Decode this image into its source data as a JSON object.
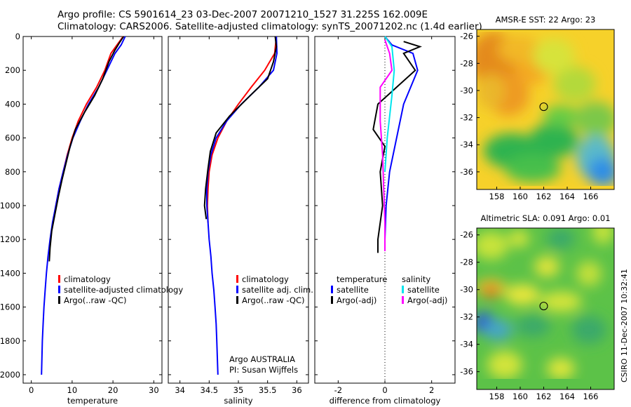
{
  "header": {
    "line1": "Argo profile: CS 5901614_23 03-Dec-2007 20071210_1527 31.225S 162.009E",
    "line2": "Climatology: CARS2006. Satellite-adjusted climatology: synTS_20071202.nc (1.4d earlier)"
  },
  "colors": {
    "climatology": "#ff0000",
    "satellite": "#0000ff",
    "argo": "#000000",
    "sat_salinity": "#00e5ee",
    "argo_adj_salinity": "#ff00ff"
  },
  "credit": "CSIRO 11-Dec-2007 10:32:41",
  "argo_note": {
    "line1": "Argo AUSTRALIA",
    "line2": "PI: Susan Wijffels"
  },
  "legend_temp": [
    "climatology",
    "satellite-adjusted climatology",
    "Argo(..raw -QC)"
  ],
  "legend_sal": [
    "climatology",
    "satellite adj. clim.",
    "Argo(..raw -QC)"
  ],
  "legend_diff": {
    "col1_title": "temperature",
    "col2_title": "salinity",
    "satellite": "satellite",
    "argo": "Argo(-adj)"
  },
  "chart_data": [
    {
      "type": "line",
      "id": "temperature",
      "xlabel": "temperature",
      "ylabel": "",
      "xlim": [
        -2,
        32
      ],
      "ylim": [
        2050,
        0
      ],
      "xticks": [
        0,
        10,
        20,
        30
      ],
      "yticks": [
        0,
        200,
        400,
        600,
        800,
        1000,
        1200,
        1400,
        1600,
        1800,
        2000
      ],
      "series": [
        {
          "name": "climatology",
          "color": "#ff0000",
          "points": [
            [
              22.5,
              0
            ],
            [
              21,
              50
            ],
            [
              19.5,
              100
            ],
            [
              18,
              200
            ],
            [
              16,
              300
            ],
            [
              13.5,
              400
            ],
            [
              11.5,
              500
            ],
            [
              10,
              600
            ],
            [
              8.8,
              700
            ],
            [
              7.8,
              800
            ],
            [
              6.8,
              900
            ],
            [
              6.0,
              1000
            ],
            [
              5.3,
              1100
            ]
          ]
        },
        {
          "name": "satellite-adjusted climatology",
          "color": "#0000ff",
          "points": [
            [
              23,
              0
            ],
            [
              22,
              50
            ],
            [
              20.5,
              100
            ],
            [
              18.5,
              200
            ],
            [
              16.5,
              300
            ],
            [
              14,
              400
            ],
            [
              12,
              500
            ],
            [
              10.2,
              600
            ],
            [
              8.9,
              700
            ],
            [
              7.8,
              800
            ],
            [
              6.8,
              900
            ],
            [
              6.0,
              1000
            ],
            [
              5.2,
              1100
            ],
            [
              4.6,
              1200
            ],
            [
              4.1,
              1300
            ],
            [
              3.7,
              1400
            ],
            [
              3.4,
              1500
            ],
            [
              3.1,
              1600
            ],
            [
              2.9,
              1700
            ],
            [
              2.7,
              1800
            ],
            [
              2.6,
              1900
            ],
            [
              2.5,
              2000
            ]
          ]
        },
        {
          "name": "Argo(..raw -QC)",
          "color": "#000000",
          "points": [
            [
              22.6,
              0
            ],
            [
              21.5,
              40
            ],
            [
              20.5,
              80
            ],
            [
              19,
              150
            ],
            [
              17.5,
              250
            ],
            [
              15.5,
              350
            ],
            [
              13,
              450
            ],
            [
              10.8,
              550
            ],
            [
              9.5,
              650
            ],
            [
              8.5,
              750
            ],
            [
              7.5,
              850
            ],
            [
              6.6,
              950
            ],
            [
              5.8,
              1050
            ],
            [
              5.0,
              1150
            ],
            [
              4.6,
              1250
            ],
            [
              4.4,
              1330
            ]
          ]
        }
      ]
    },
    {
      "type": "line",
      "id": "salinity",
      "xlabel": "salinity",
      "ylabel": "",
      "xlim": [
        33.8,
        36.2
      ],
      "ylim": [
        2050,
        0
      ],
      "xticks": [
        34,
        34.5,
        35,
        35.5,
        36
      ],
      "yticks": [
        0,
        200,
        400,
        600,
        800,
        1000,
        1200,
        1400,
        1600,
        1800,
        2000
      ],
      "series": [
        {
          "name": "climatology",
          "color": "#ff0000",
          "points": [
            [
              35.65,
              0
            ],
            [
              35.62,
              100
            ],
            [
              35.45,
              200
            ],
            [
              35.22,
              300
            ],
            [
              35.0,
              400
            ],
            [
              34.8,
              500
            ],
            [
              34.65,
              600
            ],
            [
              34.55,
              700
            ],
            [
              34.5,
              800
            ],
            [
              34.48,
              900
            ],
            [
              34.47,
              1000
            ],
            [
              34.48,
              1100
            ]
          ]
        },
        {
          "name": "satellite adj. clim.",
          "color": "#0000ff",
          "points": [
            [
              35.65,
              0
            ],
            [
              35.66,
              100
            ],
            [
              35.6,
              200
            ],
            [
              35.35,
              300
            ],
            [
              35.05,
              400
            ],
            [
              34.8,
              500
            ],
            [
              34.62,
              600
            ],
            [
              34.53,
              700
            ],
            [
              34.48,
              800
            ],
            [
              34.46,
              900
            ],
            [
              34.46,
              1000
            ],
            [
              34.48,
              1100
            ],
            [
              34.5,
              1200
            ],
            [
              34.53,
              1300
            ],
            [
              34.55,
              1400
            ],
            [
              34.58,
              1500
            ],
            [
              34.6,
              1600
            ],
            [
              34.62,
              1700
            ],
            [
              34.63,
              1800
            ],
            [
              34.64,
              1900
            ],
            [
              34.65,
              2000
            ]
          ]
        },
        {
          "name": "Argo(..raw -QC)",
          "color": "#000000",
          "points": [
            [
              35.63,
              0
            ],
            [
              35.65,
              60
            ],
            [
              35.6,
              150
            ],
            [
              35.5,
              250
            ],
            [
              35.2,
              350
            ],
            [
              34.85,
              470
            ],
            [
              34.62,
              570
            ],
            [
              34.52,
              680
            ],
            [
              34.48,
              780
            ],
            [
              34.44,
              900
            ],
            [
              34.42,
              1000
            ],
            [
              34.45,
              1080
            ]
          ]
        }
      ]
    },
    {
      "type": "line",
      "id": "difference",
      "xlabel": "difference from climatology",
      "ylabel": "",
      "xlim": [
        -3,
        3
      ],
      "ylim": [
        2050,
        0
      ],
      "xticks": [
        -2,
        0,
        2
      ],
      "yticks": [
        0,
        200,
        400,
        600,
        800,
        1000,
        1200,
        1400,
        1600,
        1800,
        2000
      ],
      "series": [
        {
          "name": "temperature satellite",
          "color": "#0000ff",
          "points": [
            [
              0,
              0
            ],
            [
              0.3,
              50
            ],
            [
              1.2,
              100
            ],
            [
              1.4,
              200
            ],
            [
              0.8,
              400
            ],
            [
              0.5,
              600
            ],
            [
              0.2,
              800
            ],
            [
              0.05,
              1000
            ],
            [
              0,
              1200
            ]
          ]
        },
        {
          "name": "temperature Argo(-adj)",
          "color": "#000000",
          "points": [
            [
              0.8,
              30
            ],
            [
              1.5,
              60
            ],
            [
              0.8,
              100
            ],
            [
              1.3,
              200
            ],
            [
              0.5,
              300
            ],
            [
              -0.3,
              400
            ],
            [
              -0.5,
              550
            ],
            [
              0,
              650
            ],
            [
              -0.2,
              800
            ],
            [
              -0.1,
              1000
            ],
            [
              -0.3,
              1200
            ],
            [
              -0.3,
              1280
            ]
          ]
        },
        {
          "name": "salinity satellite",
          "color": "#00e5ee",
          "points": [
            [
              0,
              0
            ],
            [
              0.3,
              60
            ],
            [
              0.4,
              200
            ],
            [
              0.3,
              350
            ],
            [
              0.1,
              600
            ],
            [
              0,
              800
            ]
          ]
        },
        {
          "name": "salinity Argo(-adj)",
          "color": "#ff00ff",
          "points": [
            [
              0,
              20
            ],
            [
              0.2,
              100
            ],
            [
              0.3,
              200
            ],
            [
              -0.2,
              300
            ],
            [
              -0.2,
              500
            ],
            [
              -0.1,
              700
            ],
            [
              -0.05,
              900
            ],
            [
              0,
              1100
            ],
            [
              0,
              1270
            ]
          ]
        }
      ]
    },
    {
      "type": "heatmap",
      "id": "sst_map",
      "title": "AMSR-E SST: 22 Argo: 23",
      "xlim": [
        156.3,
        168
      ],
      "ylim": [
        -37.3,
        -25.5
      ],
      "xticks": [
        158,
        160,
        162,
        164,
        166
      ],
      "yticks": [
        -26,
        -28,
        -30,
        -32,
        -34,
        -36
      ],
      "marker": {
        "lon": 162.0,
        "lat": -31.2
      }
    },
    {
      "type": "heatmap",
      "id": "sla_map",
      "title": "Altimetric SLA: 0.091 Argo: 0.01",
      "xlim": [
        156.3,
        168
      ],
      "ylim": [
        -37.3,
        -25.5
      ],
      "xticks": [
        158,
        160,
        162,
        164,
        166
      ],
      "yticks": [
        -26,
        -28,
        -30,
        -32,
        -34,
        -36
      ],
      "marker": {
        "lon": 162.0,
        "lat": -31.2
      }
    }
  ]
}
